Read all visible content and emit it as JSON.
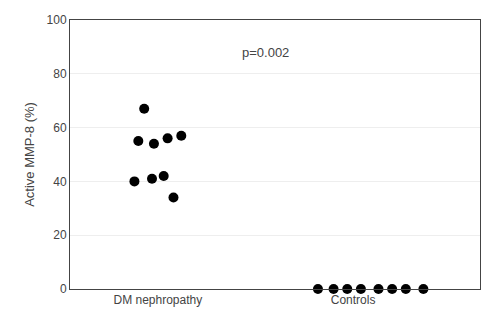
{
  "chart_data": {
    "type": "scatter",
    "x": [
      0.88,
      0.97,
      1.03,
      0.9,
      0.98,
      1.05,
      1.12,
      0.93,
      1.08,
      1.82,
      1.9,
      1.97,
      2.04,
      2.13,
      2.2,
      2.27,
      2.36
    ],
    "values": [
      40,
      41,
      42,
      55,
      54,
      56,
      57,
      67,
      34,
      0,
      0,
      0,
      0,
      0,
      0,
      0,
      0
    ],
    "color": "#000000",
    "marker": "circle",
    "ylabel": "Active MMP-8 (%)",
    "xlim": [
      0.55,
      2.65
    ],
    "xticks": [
      {
        "value": 1,
        "label": "DM nephropathy"
      },
      {
        "value": 2,
        "label": "Controls"
      }
    ],
    "ylim": [
      0,
      100
    ],
    "yticks": [
      0,
      20,
      40,
      60,
      80,
      100
    ],
    "grid": "y",
    "annotations": [
      {
        "text": "p=0.002",
        "x": 1.55,
        "y": 88
      }
    ]
  }
}
